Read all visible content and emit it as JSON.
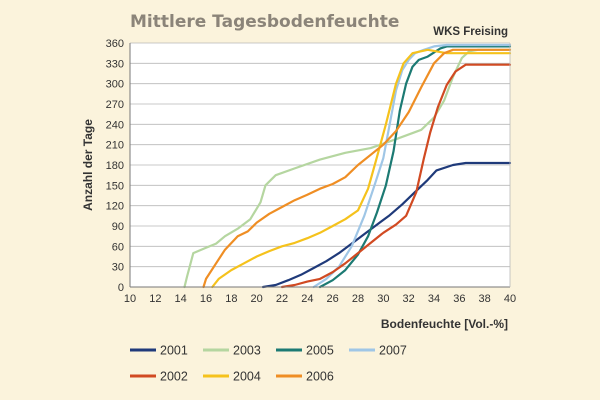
{
  "chart_data": {
    "type": "line",
    "title": "Mittlere Tagesbodenfeuchte",
    "subtitle": "WKS Freising",
    "xlabel": "Bodenfeuchte [Vol.-%]",
    "ylabel": "Anzahl der Tage",
    "xlim": [
      10,
      40
    ],
    "ylim": [
      0,
      360
    ],
    "xticks": [
      "10",
      "12",
      "14",
      "16",
      "18",
      "20",
      "22",
      "24",
      "26",
      "28",
      "30",
      "32",
      "34",
      "36",
      "38",
      "40"
    ],
    "yticks": [
      "0",
      "30",
      "60",
      "90",
      "120",
      "150",
      "180",
      "210",
      "240",
      "270",
      "300",
      "330",
      "360"
    ],
    "grid": "horizontal",
    "legend_position": "bottom",
    "series": [
      {
        "name": "2001",
        "color": "#1f3a7a",
        "points": [
          [
            20.5,
            0
          ],
          [
            21.5,
            3
          ],
          [
            22.5,
            10
          ],
          [
            23.5,
            18
          ],
          [
            24.5,
            28
          ],
          [
            25.5,
            38
          ],
          [
            26.5,
            50
          ],
          [
            27.5,
            64
          ],
          [
            28.5,
            78
          ],
          [
            29.5,
            92
          ],
          [
            30.5,
            106
          ],
          [
            31.5,
            122
          ],
          [
            32.5,
            140
          ],
          [
            33.5,
            158
          ],
          [
            34.2,
            172
          ],
          [
            35.5,
            180
          ],
          [
            36.5,
            183
          ],
          [
            40,
            183
          ]
        ]
      },
      {
        "name": "2003",
        "color": "#b5d6a0",
        "points": [
          [
            14.3,
            0
          ],
          [
            14.5,
            15
          ],
          [
            15,
            50
          ],
          [
            16,
            58
          ],
          [
            16.8,
            64
          ],
          [
            17.5,
            75
          ],
          [
            18.5,
            86
          ],
          [
            19.5,
            100
          ],
          [
            20.3,
            125
          ],
          [
            20.7,
            150
          ],
          [
            21.5,
            165
          ],
          [
            23,
            175
          ],
          [
            25,
            188
          ],
          [
            27,
            198
          ],
          [
            29,
            205
          ],
          [
            31,
            218
          ],
          [
            33,
            232
          ],
          [
            34,
            250
          ],
          [
            34.8,
            275
          ],
          [
            35.5,
            310
          ],
          [
            36.2,
            338
          ],
          [
            36.8,
            348
          ],
          [
            37.5,
            350
          ],
          [
            40,
            350
          ]
        ]
      },
      {
        "name": "2005",
        "color": "#1c7a73",
        "points": [
          [
            25,
            0
          ],
          [
            26,
            10
          ],
          [
            27,
            25
          ],
          [
            28,
            48
          ],
          [
            28.8,
            75
          ],
          [
            29.5,
            110
          ],
          [
            30.2,
            150
          ],
          [
            30.8,
            200
          ],
          [
            31.3,
            260
          ],
          [
            31.8,
            300
          ],
          [
            32.3,
            325
          ],
          [
            32.8,
            335
          ],
          [
            33.5,
            340
          ],
          [
            34.5,
            352
          ],
          [
            35,
            355
          ],
          [
            40,
            355
          ]
        ]
      },
      {
        "name": "2007",
        "color": "#9fc6e6",
        "points": [
          [
            24.5,
            0
          ],
          [
            25.5,
            12
          ],
          [
            26.5,
            30
          ],
          [
            27.5,
            60
          ],
          [
            28.5,
            105
          ],
          [
            29.3,
            150
          ],
          [
            30,
            190
          ],
          [
            30.5,
            240
          ],
          [
            31,
            290
          ],
          [
            31.5,
            320
          ],
          [
            32,
            335
          ],
          [
            32.5,
            345
          ],
          [
            33.2,
            350
          ],
          [
            34,
            355
          ],
          [
            35,
            357
          ],
          [
            40,
            357
          ]
        ]
      },
      {
        "name": "2002",
        "color": "#d14a22",
        "points": [
          [
            22,
            0
          ],
          [
            23,
            3
          ],
          [
            24,
            8
          ],
          [
            25,
            12
          ],
          [
            26,
            22
          ],
          [
            27,
            35
          ],
          [
            28,
            50
          ],
          [
            29,
            65
          ],
          [
            30,
            80
          ],
          [
            31,
            92
          ],
          [
            31.8,
            105
          ],
          [
            32.6,
            140
          ],
          [
            33.2,
            190
          ],
          [
            33.7,
            228
          ],
          [
            34.3,
            265
          ],
          [
            35,
            298
          ],
          [
            35.7,
            318
          ],
          [
            36.5,
            328
          ],
          [
            40,
            328
          ]
        ]
      },
      {
        "name": "2004",
        "color": "#f5c21c",
        "points": [
          [
            16.5,
            0
          ],
          [
            17,
            12
          ],
          [
            18,
            25
          ],
          [
            19,
            35
          ],
          [
            20,
            45
          ],
          [
            21,
            53
          ],
          [
            22,
            60
          ],
          [
            23,
            65
          ],
          [
            24,
            72
          ],
          [
            25,
            80
          ],
          [
            26,
            90
          ],
          [
            27,
            100
          ],
          [
            28,
            113
          ],
          [
            28.8,
            145
          ],
          [
            29.4,
            185
          ],
          [
            30.2,
            240
          ],
          [
            31,
            300
          ],
          [
            31.6,
            330
          ],
          [
            32.3,
            345
          ],
          [
            33.5,
            350
          ],
          [
            35,
            345
          ],
          [
            40,
            345
          ]
        ]
      },
      {
        "name": "2006",
        "color": "#ef8e24",
        "points": [
          [
            15.8,
            0
          ],
          [
            16,
            12
          ],
          [
            16.8,
            35
          ],
          [
            17.5,
            55
          ],
          [
            18.5,
            75
          ],
          [
            19.3,
            82
          ],
          [
            20,
            95
          ],
          [
            21,
            108
          ],
          [
            22,
            118
          ],
          [
            23,
            128
          ],
          [
            24,
            136
          ],
          [
            25,
            145
          ],
          [
            26,
            152
          ],
          [
            27,
            162
          ],
          [
            28,
            180
          ],
          [
            29,
            195
          ],
          [
            30,
            210
          ],
          [
            31,
            230
          ],
          [
            32,
            258
          ],
          [
            33,
            295
          ],
          [
            34,
            330
          ],
          [
            34.8,
            345
          ],
          [
            35.5,
            350
          ],
          [
            40,
            350
          ]
        ]
      }
    ],
    "legend_rows": [
      [
        "2001",
        "2003",
        "2005",
        "2007"
      ],
      [
        "2002",
        "2004",
        "2006"
      ]
    ]
  }
}
